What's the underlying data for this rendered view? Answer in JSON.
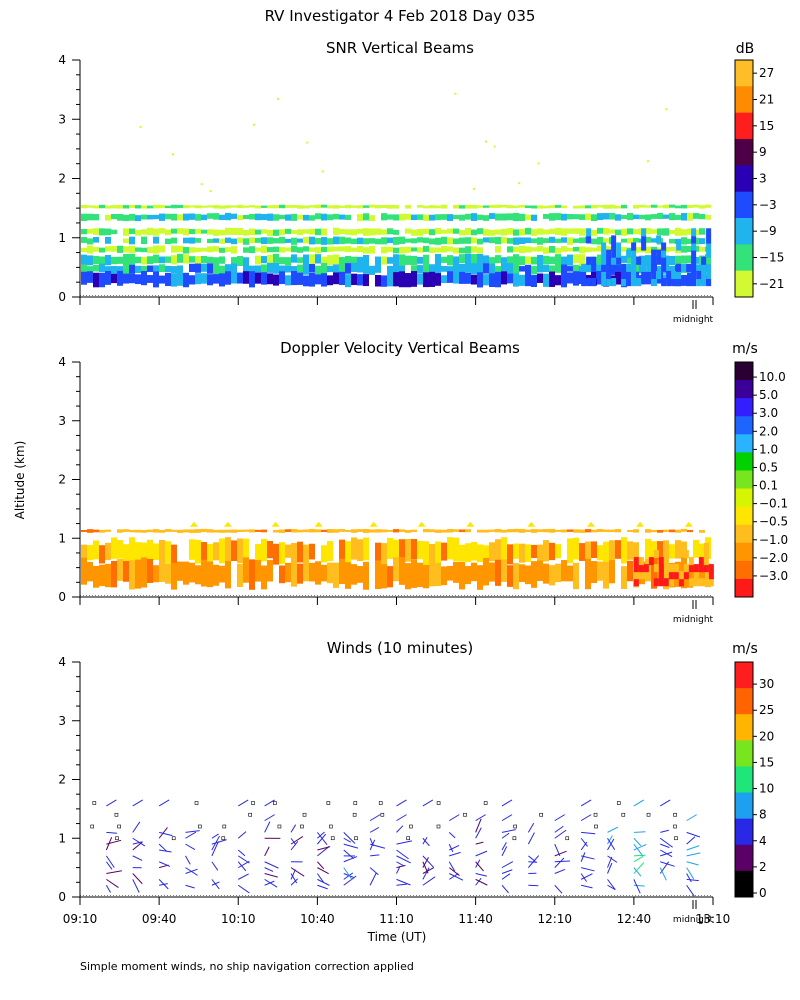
{
  "page_title": "RV Investigator    4 Feb 2018 Day 035",
  "footnote": "Simple moment winds, no ship navigation correction applied",
  "colors": {
    "white_band": "#ffffff",
    "snr_palette": [
      "#d2fa32",
      "#34e27a",
      "#20b4ee",
      "#1e4bff",
      "#2a00b4",
      "#4e0046",
      "#ff1e1e",
      "#ff8c00",
      "#ffbe28"
    ],
    "doppler_palette": [
      "#ff1919",
      "#ff6e00",
      "#ff9600",
      "#ffbe1e",
      "#ffe600",
      "#d7f500",
      "#78e61e",
      "#00d200",
      "#28b4ff",
      "#1e64ff",
      "#321eff",
      "#3c009a",
      "#2a0034"
    ],
    "wind_palette": [
      "#000000",
      "#5a0066",
      "#2828e6",
      "#1ea0f0",
      "#1ee678",
      "#78e61e",
      "#ffb400",
      "#ff6400",
      "#ff1e1e"
    ]
  },
  "chart_data": [
    {
      "id": "snr",
      "type": "heatmap",
      "title": "SNR Vertical Beams",
      "unit": "dB",
      "colorbar_ticks": [
        "27",
        "21",
        "15",
        "9",
        "3",
        "−3",
        "−9",
        "−15",
        "−21"
      ],
      "ylabel": "",
      "ylim": [
        0,
        4
      ],
      "y_ticks": [
        "0",
        "1",
        "2",
        "3",
        "4"
      ],
      "xlim": [
        "09:10",
        "13:10"
      ],
      "midnight_label": "midnight",
      "layers": [
        {
          "top_km": 1.55,
          "bottom_km": 1.5,
          "value_db": -21
        },
        {
          "top_km": 1.4,
          "bottom_km": 1.3,
          "value_db": -18
        },
        {
          "top_km": 1.15,
          "bottom_km": 1.05,
          "value_db": -21
        },
        {
          "top_km": 1.0,
          "bottom_km": 0.9,
          "value_db": -18
        },
        {
          "top_km": 0.85,
          "bottom_km": 0.75,
          "value_db": -21
        },
        {
          "top_km": 0.7,
          "bottom_km": 0.55,
          "value_db": -15
        },
        {
          "top_km": 0.55,
          "bottom_km": 0.4,
          "value_db": -9
        },
        {
          "top_km": 0.4,
          "bottom_km": 0.2,
          "value_db": -3
        }
      ],
      "late_enhancement": {
        "start": "12:20",
        "end": "13:10",
        "max_height_km": 1.1,
        "value_db": -3
      }
    },
    {
      "id": "doppler",
      "type": "heatmap",
      "title": "Doppler Velocity Vertical Beams",
      "unit": "m/s",
      "colorbar_ticks": [
        "10.0",
        "5.0",
        "3.0",
        "2.0",
        "1.0",
        "0.5",
        "0.1",
        "−0.1",
        "−0.5",
        "−1.0",
        "−2.0",
        "−3.0"
      ],
      "ylabel": "Altitude (km)",
      "ylim": [
        0,
        4
      ],
      "y_ticks": [
        "0",
        "1",
        "2",
        "3",
        "4"
      ],
      "xlim": [
        "09:10",
        "13:10"
      ],
      "midnight_label": "midnight",
      "layers": [
        {
          "top_km": 1.15,
          "bottom_km": 1.1,
          "value_ms": -0.5
        },
        {
          "top_km": 0.95,
          "bottom_km": 0.6,
          "value_ms": -0.1
        },
        {
          "top_km": 0.6,
          "bottom_km": 0.2,
          "value_ms": -1.0
        }
      ],
      "late_rain": {
        "start": "12:40",
        "end": "13:10",
        "max_height_km": 1.0,
        "value_ms": -3.0
      }
    },
    {
      "id": "winds",
      "type": "scatter",
      "title": "Winds (10 minutes)",
      "unit": "m/s",
      "colorbar_ticks": [
        "30",
        "25",
        "20",
        "15",
        "10",
        "8",
        "4",
        "2",
        "0"
      ],
      "ylabel": "",
      "xlabel": "Time (UT)",
      "ylim": [
        0,
        4
      ],
      "y_ticks": [
        "0",
        "1",
        "2",
        "3",
        "4"
      ],
      "xlim": [
        "09:10",
        "13:10"
      ],
      "x_ticks": [
        "09:10",
        "09:40",
        "10:10",
        "10:40",
        "11:10",
        "11:40",
        "12:10",
        "12:40",
        "13:10"
      ],
      "midnight_label": "midnight",
      "profiles": [
        {
          "time": "09:20",
          "speed_ms": 4
        },
        {
          "time": "09:30",
          "speed_ms": 5
        },
        {
          "time": "09:40",
          "speed_ms": 5
        },
        {
          "time": "09:50",
          "speed_ms": 4
        },
        {
          "time": "10:00",
          "speed_ms": 6
        },
        {
          "time": "10:10",
          "speed_ms": 5
        },
        {
          "time": "10:20",
          "speed_ms": 5
        },
        {
          "time": "10:30",
          "speed_ms": 4
        },
        {
          "time": "10:40",
          "speed_ms": 5
        },
        {
          "time": "10:50",
          "speed_ms": 7
        },
        {
          "time": "11:00",
          "speed_ms": 6
        },
        {
          "time": "11:10",
          "speed_ms": 5
        },
        {
          "time": "11:20",
          "speed_ms": 4
        },
        {
          "time": "11:30",
          "speed_ms": 5
        },
        {
          "time": "11:40",
          "speed_ms": 4
        },
        {
          "time": "11:50",
          "speed_ms": 5
        },
        {
          "time": "12:00",
          "speed_ms": 6
        },
        {
          "time": "12:10",
          "speed_ms": 5
        },
        {
          "time": "12:20",
          "speed_ms": 6
        },
        {
          "time": "12:30",
          "speed_ms": 8
        },
        {
          "time": "12:40",
          "speed_ms": 9
        },
        {
          "time": "12:50",
          "speed_ms": 7
        },
        {
          "time": "13:00",
          "speed_ms": 8
        }
      ]
    }
  ]
}
